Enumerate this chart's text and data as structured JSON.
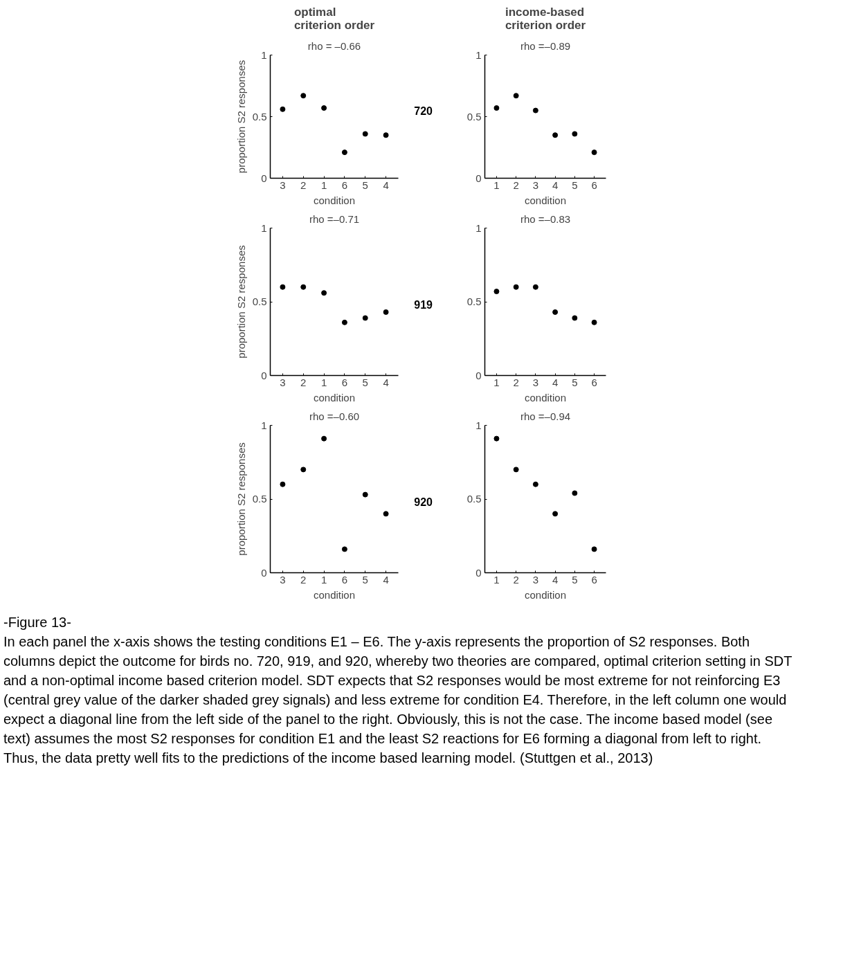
{
  "chart_data": [
    {
      "type": "scatter",
      "title": "optimal\ncriterion order",
      "subtitle": "rho = –0.66",
      "ylabel": "proportion S2 responses",
      "xlabel": "condition",
      "categories": [
        "3",
        "2",
        "1",
        "6",
        "5",
        "4"
      ],
      "values": [
        0.56,
        0.67,
        0.57,
        0.21,
        0.36,
        0.35
      ],
      "color": "#000000",
      "marker": "circle",
      "ylim": [
        0,
        1
      ],
      "yticks": [
        0,
        0.5,
        1
      ],
      "grid": false
    },
    {
      "type": "scatter",
      "title": "income-based\ncriterion order",
      "subtitle": "rho =–0.89",
      "xlabel": "condition",
      "categories": [
        "1",
        "2",
        "3",
        "4",
        "5",
        "6"
      ],
      "values": [
        0.57,
        0.67,
        0.55,
        0.35,
        0.36,
        0.21
      ],
      "color": "#000000",
      "marker": "circle",
      "ylim": [
        0,
        1
      ],
      "yticks": [
        0,
        0.5,
        1
      ],
      "grid": false,
      "annotations": [
        "720"
      ]
    },
    {
      "type": "scatter",
      "subtitle": "rho =–0.71",
      "ylabel": "proportion S2 responses",
      "xlabel": "condition",
      "categories": [
        "3",
        "2",
        "1",
        "6",
        "5",
        "4"
      ],
      "values": [
        0.6,
        0.6,
        0.56,
        0.36,
        0.39,
        0.43
      ],
      "color": "#000000",
      "marker": "circle",
      "ylim": [
        0,
        1
      ],
      "yticks": [
        0,
        0.5,
        1
      ],
      "grid": false
    },
    {
      "type": "scatter",
      "subtitle": "rho =–0.83",
      "xlabel": "condition",
      "categories": [
        "1",
        "2",
        "3",
        "4",
        "5",
        "6"
      ],
      "values": [
        0.57,
        0.6,
        0.6,
        0.43,
        0.39,
        0.36
      ],
      "color": "#000000",
      "marker": "circle",
      "ylim": [
        0,
        1
      ],
      "yticks": [
        0,
        0.5,
        1
      ],
      "grid": false,
      "annotations": [
        "919"
      ]
    },
    {
      "type": "scatter",
      "subtitle": "rho =–0.60",
      "ylabel": "proportion S2 responses",
      "xlabel": "condition",
      "categories": [
        "3",
        "2",
        "1",
        "6",
        "5",
        "4"
      ],
      "values": [
        0.6,
        0.7,
        0.91,
        0.16,
        0.53,
        0.4
      ],
      "color": "#000000",
      "marker": "circle",
      "ylim": [
        0,
        1
      ],
      "yticks": [
        0,
        0.5,
        1
      ],
      "grid": false
    },
    {
      "type": "scatter",
      "subtitle": "rho =–0.94",
      "xlabel": "condition",
      "categories": [
        "1",
        "2",
        "3",
        "4",
        "5",
        "6"
      ],
      "values": [
        0.91,
        0.7,
        0.6,
        0.4,
        0.54,
        0.16
      ],
      "color": "#000000",
      "marker": "circle",
      "ylim": [
        0,
        1
      ],
      "yticks": [
        0,
        0.5,
        1
      ],
      "grid": false,
      "annotations": [
        "920",
        "-Figure 13-",
        "In each panel the x-axis shows the testing conditions E1 – E6. The y-axis represents the proportion of S2 responses. Both columns depict the outcome for birds no. 720, 919, and 920, whereby two theories are compared, optimal criterion setting in SDT and a non-optimal income based criterion model. SDT expects that S2 responses would be most extreme for not reinforcing E3 (central grey value of the darker shaded grey signals) and less extreme for condition E4. Therefore, in the left column one would expect a diagonal line from the left side of the panel to the right. Obviously, this is not the case. The income based model (see text) assumes the most S2 responses for condition E1 and the least S2 reactions for E6 forming a diagonal from left to right. Thus, the data pretty well fits to the predictions of the income based learning model. (Stuttgen et al., 2013)"
      ]
    }
  ]
}
